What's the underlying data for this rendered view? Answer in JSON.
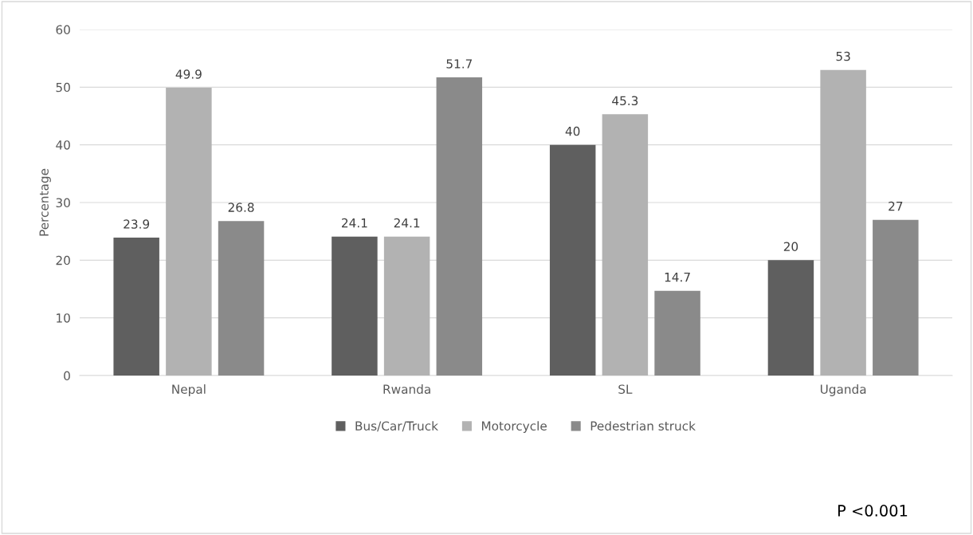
{
  "chart_data": {
    "type": "bar",
    "categories": [
      "Nepal",
      "Rwanda",
      "SL",
      "Uganda"
    ],
    "series": [
      {
        "name": "Bus/Car/Truck",
        "color": "#5f5f5f",
        "values": [
          23.9,
          24.1,
          40,
          20
        ]
      },
      {
        "name": "Motorcycle",
        "color": "#b2b2b2",
        "values": [
          49.9,
          24.1,
          45.3,
          53
        ]
      },
      {
        "name": "Pedestrian struck",
        "color": "#8a8a8a",
        "values": [
          26.8,
          51.7,
          14.7,
          27
        ]
      }
    ],
    "ylabel": "Percentage",
    "ylim": [
      0,
      60
    ],
    "yticks": [
      0,
      10,
      20,
      30,
      40,
      50,
      60
    ],
    "grid": "y",
    "legend": "bottom",
    "data_labels": true,
    "annotations": [
      "P <0.001"
    ]
  }
}
